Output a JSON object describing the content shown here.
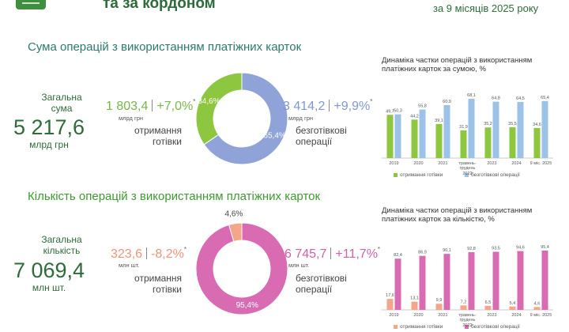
{
  "header": {
    "title": "та за кордоном",
    "period": "за 9 місяців 2025 року"
  },
  "sections": [
    {
      "title": "Сума операцій з використанням платіжних карток",
      "total_label": "Загальна сума",
      "total": "5 217,6",
      "total_unit": "млрд грн",
      "cash": {
        "amount": "1 803,4",
        "change": "+7,0%",
        "note": "*",
        "unit": "млрд грн"
      },
      "cashless": {
        "amount": "3 414,2",
        "change": "+9,9%",
        "note": "*",
        "unit": "млрд грн"
      }
    },
    {
      "title": "Кількість операцій з використанням платіжних карток",
      "total_label": "Загальна кількість",
      "total": "7 069,4",
      "total_unit": "млн шт.",
      "cash": {
        "amount": "323,6",
        "change": "-8,2%",
        "note": "*",
        "unit": "млн шт."
      },
      "cashless": {
        "amount": "6 745,7",
        "change": "+11,7%",
        "note": "*",
        "unit": "млн шт."
      }
    }
  ],
  "chart_data": [
    {
      "type": "donut",
      "categories": [
        "отримання готівки",
        "безготівкові операції"
      ],
      "values": [
        34.6,
        65.4
      ],
      "value_labels": [
        "34,6%",
        "65,4%"
      ],
      "colors": [
        "#8dc63f",
        "#8fa3d8"
      ]
    },
    {
      "type": "bar",
      "title": "Динаміка частки операцій з використанням платіжних карток за сумою, %",
      "categories": [
        "2019",
        "2020",
        "2021",
        "травень-грудень 2022",
        "2023",
        "2024",
        "9 міс. 2025"
      ],
      "series": [
        {
          "name": "отримання готівки",
          "color": "#8dc63f",
          "values": [
            49.7,
            44.2,
            39.1,
            31.9,
            35.2,
            35.5,
            34.6
          ],
          "value_labels": [
            "49,7",
            "44,2",
            "39,1",
            "31,9",
            "35,2",
            "35,5",
            "34,6"
          ]
        },
        {
          "name": "безготівкові операції",
          "color": "#9cc2e8",
          "values": [
            50.3,
            55.8,
            60.9,
            68.1,
            64.8,
            64.5,
            65.4
          ],
          "value_labels": [
            "50,3",
            "55,8",
            "60,9",
            "68,1",
            "64,8",
            "64,5",
            "65,4"
          ]
        }
      ]
    },
    {
      "type": "donut",
      "categories": [
        "отримання готівки",
        "безготівкові операції"
      ],
      "values": [
        4.6,
        95.4
      ],
      "value_labels": [
        "4,6%",
        "95,4%"
      ],
      "colors": [
        "#f4a58a",
        "#d96bb3"
      ]
    },
    {
      "type": "bar",
      "title": "Динаміка частки операцій з використанням платіжних карток за кількістю, %",
      "categories": [
        "2019",
        "2020",
        "2021",
        "травень-грудень 2022",
        "2023",
        "2024",
        "9 міс. 2025"
      ],
      "series": [
        {
          "name": "отримання готівки",
          "color": "#f4a58a",
          "values": [
            17.6,
            13.1,
            9.9,
            7.2,
            6.5,
            5.4,
            4.6
          ],
          "value_labels": [
            "17,6",
            "13,1",
            "9,9",
            "7,2",
            "6,5",
            "5,4",
            "4,6"
          ]
        },
        {
          "name": "безготівкові операції",
          "color": "#d96bb3",
          "values": [
            82.4,
            86.9,
            90.1,
            92.8,
            93.5,
            94.6,
            95.4
          ],
          "value_labels": [
            "82,4",
            "86,9",
            "90,1",
            "92,8",
            "93,5",
            "94,6",
            "95,4"
          ]
        }
      ]
    }
  ]
}
